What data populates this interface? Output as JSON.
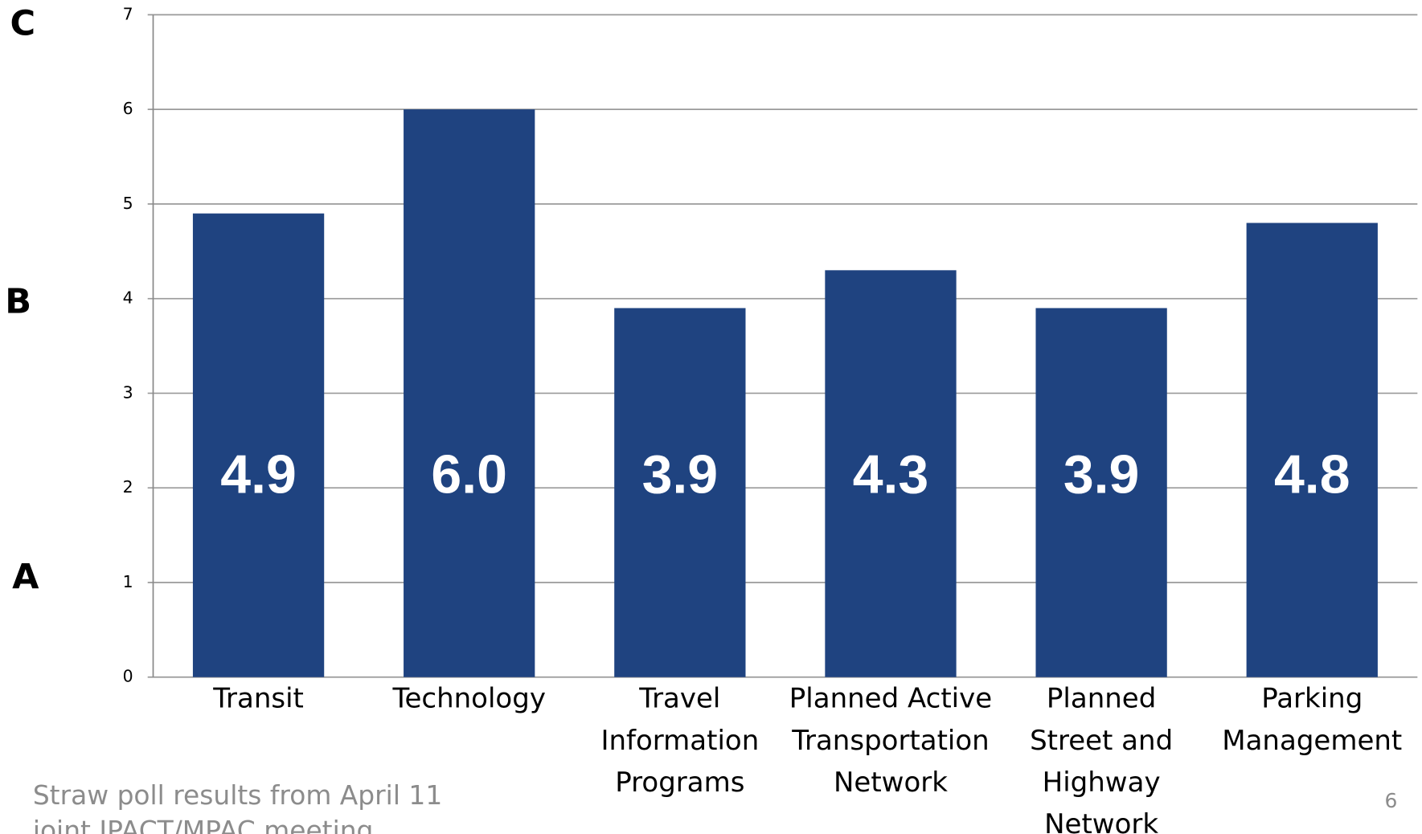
{
  "chart_data": {
    "type": "bar",
    "categories": [
      [
        "Transit"
      ],
      [
        "Technology"
      ],
      [
        "Travel",
        "Information",
        "Programs"
      ],
      [
        "Planned Active",
        "Transportation",
        "Network"
      ],
      [
        "Planned",
        "Street and",
        "Highway",
        "Network"
      ],
      [
        "Parking",
        "Management"
      ]
    ],
    "values": [
      4.9,
      6.0,
      3.9,
      4.3,
      3.9,
      4.8
    ],
    "value_labels": [
      "4.9",
      "6.0",
      "3.9",
      "4.3",
      "3.9",
      "4.8"
    ],
    "color": "#1f4380",
    "ylim": [
      0,
      7
    ],
    "yticks": [
      0,
      1,
      2,
      3,
      4,
      5,
      6,
      7
    ],
    "grid": true,
    "annotations": {
      "levels": [
        "C",
        "B",
        "A"
      ],
      "footnote": [
        "Straw poll results from April 11",
        "joint JPACT/MPAC meeting"
      ],
      "page_number": "6"
    }
  }
}
